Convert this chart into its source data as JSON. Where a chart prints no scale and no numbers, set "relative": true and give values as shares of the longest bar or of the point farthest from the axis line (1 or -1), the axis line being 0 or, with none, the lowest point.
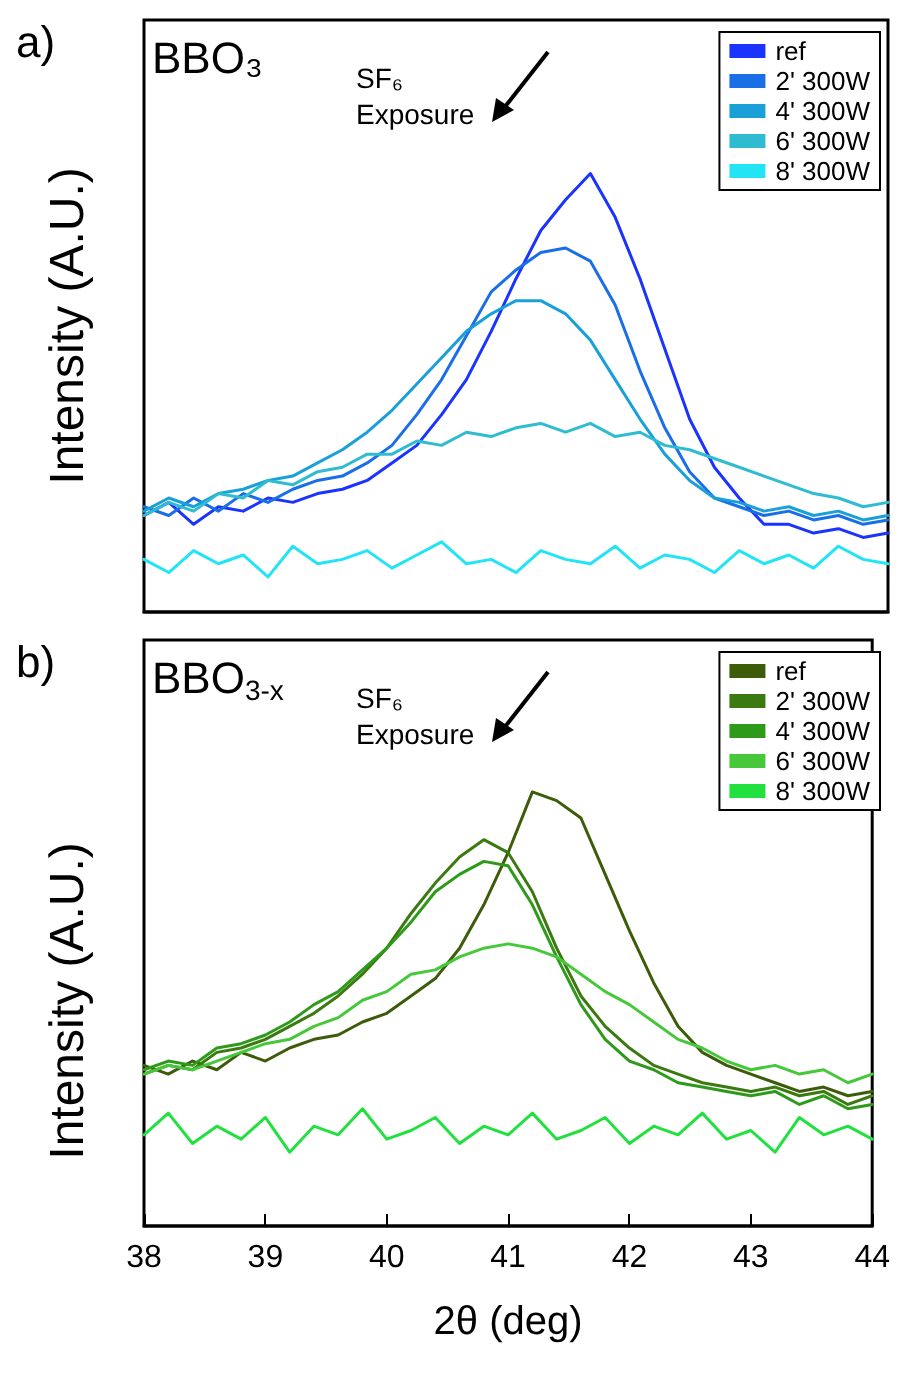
{
  "chart_data": [
    {
      "type": "line",
      "title": "a)",
      "ylabel": "Intensity (A.U.)",
      "annotations": [
        "BBO₃",
        "SF₆ Exposure"
      ],
      "relative": true,
      "tick_labels": false,
      "grid": false,
      "legend": "top right",
      "marker": "none",
      "line_style": "solid",
      "categories": [
        null,
        null,
        null,
        null,
        null,
        null,
        null,
        null,
        null,
        null,
        null,
        null,
        null,
        null,
        null,
        null,
        null,
        null,
        null,
        null,
        null,
        null,
        null,
        null,
        null,
        null,
        null,
        null,
        null,
        null,
        null
      ],
      "series": [
        {
          "name": "ref",
          "color": "#1a33ff",
          "values": [
            0.22,
            0.25,
            0.2,
            0.24,
            0.23,
            0.26,
            0.25,
            0.27,
            0.28,
            0.3,
            0.34,
            0.38,
            0.45,
            0.53,
            0.64,
            0.76,
            0.87,
            0.94,
            1,
            0.9,
            0.76,
            0.6,
            0.44,
            0.33,
            0.26,
            0.2,
            0.2,
            0.18,
            0.19,
            0.17,
            0.18
          ]
        },
        {
          "name": "2' 300W",
          "color": "#1a6ee6",
          "values": [
            0.24,
            0.22,
            0.26,
            0.23,
            0.27,
            0.25,
            0.28,
            0.3,
            0.31,
            0.34,
            0.38,
            0.45,
            0.53,
            0.63,
            0.73,
            0.78,
            0.82,
            0.83,
            0.8,
            0.7,
            0.55,
            0.42,
            0.32,
            0.26,
            0.24,
            0.22,
            0.23,
            0.21,
            0.22,
            0.2,
            0.21
          ]
        },
        {
          "name": "4' 300W",
          "color": "#1aa0d8",
          "values": [
            0.23,
            0.26,
            0.24,
            0.27,
            0.28,
            0.3,
            0.31,
            0.34,
            0.37,
            0.41,
            0.46,
            0.52,
            0.58,
            0.64,
            0.68,
            0.71,
            0.71,
            0.68,
            0.62,
            0.53,
            0.44,
            0.36,
            0.3,
            0.26,
            0.25,
            0.23,
            0.24,
            0.22,
            0.23,
            0.21,
            0.22
          ]
        },
        {
          "name": "6' 300W",
          "color": "#30bcd0",
          "values": [
            0.22,
            0.25,
            0.23,
            0.27,
            0.26,
            0.3,
            0.29,
            0.32,
            0.33,
            0.36,
            0.36,
            0.39,
            0.38,
            0.41,
            0.4,
            0.42,
            0.43,
            0.41,
            0.43,
            0.4,
            0.41,
            0.38,
            0.37,
            0.35,
            0.33,
            0.31,
            0.29,
            0.27,
            0.26,
            0.24,
            0.25
          ]
        },
        {
          "name": "8' 300W",
          "color": "#22e4f5",
          "values": [
            0.12,
            0.09,
            0.14,
            0.11,
            0.13,
            0.08,
            0.15,
            0.11,
            0.12,
            0.14,
            0.1,
            0.13,
            0.16,
            0.11,
            0.12,
            0.09,
            0.14,
            0.12,
            0.11,
            0.15,
            0.1,
            0.13,
            0.12,
            0.09,
            0.14,
            0.11,
            0.13,
            0.1,
            0.15,
            0.12,
            0.11
          ]
        }
      ]
    },
    {
      "type": "line",
      "title": "b)",
      "ylabel": "Intensity (A.U.)",
      "xlabel": "2θ (deg)",
      "annotations": [
        "BBO$_{3-x}$",
        "SF₆ Exposure"
      ],
      "relative": true,
      "xlim": [
        38,
        44
      ],
      "xticks": [
        38,
        39,
        40,
        41,
        42,
        43,
        44
      ],
      "tick_labels": "x",
      "grid": false,
      "legend": "top right",
      "marker": "none",
      "line_style": "solid",
      "x": [
        38,
        38.2,
        38.4,
        38.6,
        38.8,
        39,
        39.2,
        39.4,
        39.6,
        39.8,
        40,
        40.2,
        40.4,
        40.6,
        40.8,
        41,
        41.2,
        41.4,
        41.6,
        41.8,
        42,
        42.2,
        42.4,
        42.6,
        42.8,
        43,
        43.2,
        43.4,
        43.6,
        43.8,
        44
      ],
      "series": [
        {
          "name": "ref",
          "color": "#3d5c0a",
          "values": [
            0.37,
            0.35,
            0.38,
            0.36,
            0.4,
            0.38,
            0.41,
            0.43,
            0.44,
            0.47,
            0.49,
            0.53,
            0.57,
            0.64,
            0.74,
            0.86,
            1,
            0.98,
            0.94,
            0.81,
            0.68,
            0.56,
            0.46,
            0.4,
            0.37,
            0.35,
            0.33,
            0.31,
            0.32,
            0.3,
            0.31
          ]
        },
        {
          "name": "2' 300W",
          "color": "#3a7a10",
          "values": [
            0.35,
            0.37,
            0.36,
            0.4,
            0.41,
            0.43,
            0.46,
            0.49,
            0.53,
            0.58,
            0.64,
            0.72,
            0.79,
            0.85,
            0.89,
            0.86,
            0.77,
            0.64,
            0.53,
            0.46,
            0.41,
            0.37,
            0.35,
            0.33,
            0.32,
            0.31,
            0.32,
            0.3,
            0.31,
            0.28,
            0.3
          ]
        },
        {
          "name": "4' 300W",
          "color": "#2e9a1a",
          "values": [
            0.36,
            0.38,
            0.37,
            0.41,
            0.42,
            0.44,
            0.47,
            0.51,
            0.54,
            0.59,
            0.64,
            0.7,
            0.77,
            0.81,
            0.84,
            0.83,
            0.74,
            0.62,
            0.51,
            0.43,
            0.38,
            0.36,
            0.33,
            0.32,
            0.31,
            0.3,
            0.31,
            0.28,
            0.3,
            0.27,
            0.28
          ]
        },
        {
          "name": "6' 300W",
          "color": "#46c83a",
          "values": [
            0.35,
            0.37,
            0.36,
            0.38,
            0.4,
            0.42,
            0.43,
            0.46,
            0.48,
            0.52,
            0.54,
            0.58,
            0.59,
            0.62,
            0.64,
            0.65,
            0.64,
            0.62,
            0.58,
            0.54,
            0.51,
            0.47,
            0.43,
            0.41,
            0.38,
            0.36,
            0.37,
            0.35,
            0.36,
            0.33,
            0.35
          ]
        },
        {
          "name": "8' 300W",
          "color": "#22e040",
          "values": [
            0.21,
            0.26,
            0.19,
            0.23,
            0.2,
            0.25,
            0.17,
            0.23,
            0.21,
            0.27,
            0.2,
            0.22,
            0.25,
            0.19,
            0.23,
            0.21,
            0.26,
            0.2,
            0.22,
            0.25,
            0.19,
            0.23,
            0.21,
            0.26,
            0.2,
            0.22,
            0.17,
            0.25,
            0.21,
            0.23,
            0.2
          ]
        }
      ]
    }
  ]
}
